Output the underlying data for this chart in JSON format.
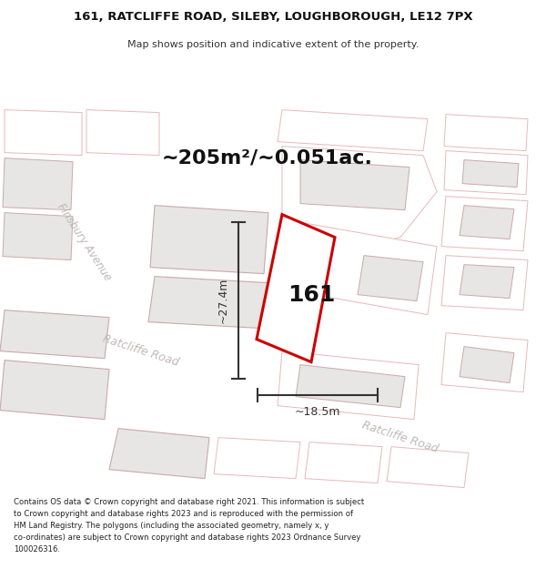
{
  "title_line1": "161, RATCLIFFE ROAD, SILEBY, LOUGHBOROUGH, LE12 7PX",
  "title_line2": "Map shows position and indicative extent of the property.",
  "area_label": "~205m²/~0.051ac.",
  "width_label": "~18.5m",
  "height_label": "~27.4m",
  "plot_number": "161",
  "footer_text": "Contains OS data © Crown copyright and database right 2021. This information is subject\nto Crown copyright and database rights 2023 and is reproduced with the permission of\nHM Land Registry. The polygons (including the associated geometry, namely x, y\nco-ordinates) are subject to Crown copyright and database rights 2023 Ordnance Survey\n100026316.",
  "map_bg": "#f5f2f2",
  "plot_outline_color": "#cc0000",
  "plot_fill_color": "#ffffff",
  "building_fill": "#e8e5e5",
  "building_edge": "#c8aaaa",
  "outline_only_edge": "#e8b8b8",
  "outline_only_fill": "#ffffff",
  "road_label_color": "#c0b8b8",
  "dim_color": "#333333",
  "title_color": "#111111",
  "footer_color": "#222222"
}
